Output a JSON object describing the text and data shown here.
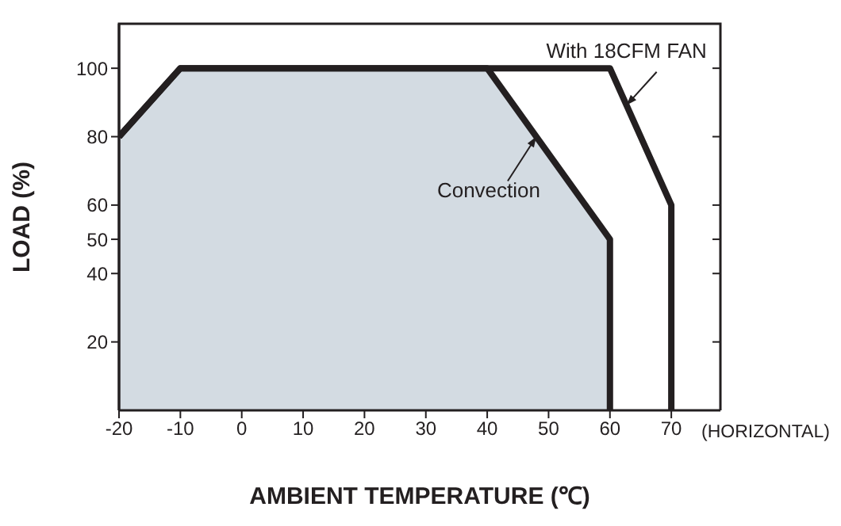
{
  "chart_data": {
    "type": "line",
    "xlabel": "AMBIENT TEMPERATURE (℃)",
    "ylabel": "LOAD (%)",
    "series": [
      {
        "name": "Convection",
        "type": "area",
        "color": "#d3dbe2",
        "x": [
          -20,
          -10,
          40,
          60,
          60
        ],
        "values": [
          80,
          100,
          100,
          50,
          0
        ]
      },
      {
        "name": "With 18CFM FAN",
        "color": "#231f20",
        "x": [
          -20,
          -10,
          60,
          70,
          70
        ],
        "values": [
          80,
          100,
          100,
          60,
          0
        ]
      }
    ],
    "annotations": [
      "(HORIZONTAL)"
    ],
    "xlim": [
      -20,
      78
    ],
    "xticks": [
      -20,
      -10,
      0,
      10,
      20,
      30,
      40,
      50,
      60,
      70
    ],
    "ylim": [
      0,
      113
    ],
    "yticks": [
      20,
      40,
      50,
      60,
      80,
      100
    ],
    "grid": false,
    "marker": "none",
    "line_style": "solid"
  }
}
